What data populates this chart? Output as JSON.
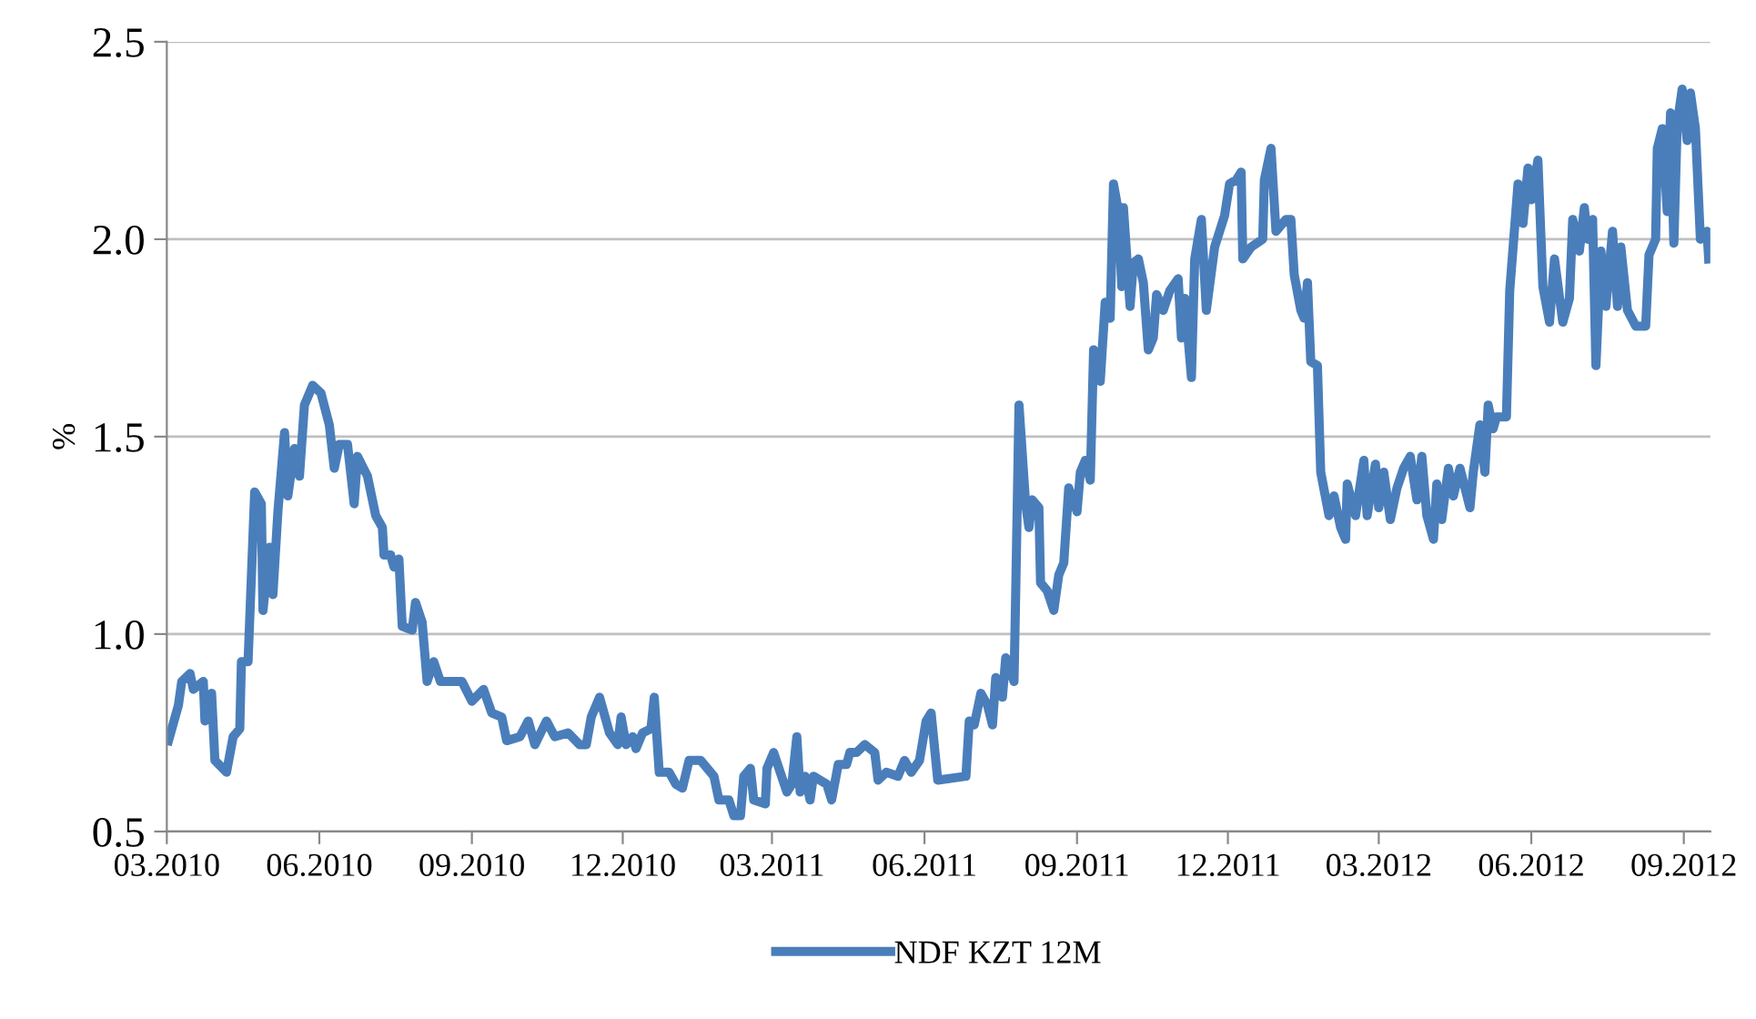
{
  "chart_data": {
    "type": "line",
    "ylabel": "%",
    "legend": "bottom",
    "grid": "y",
    "marker": "none",
    "line_style": "solid",
    "xlim": [
      "2010-03-01",
      "2012-09-17"
    ],
    "ylim": [
      0.5,
      2.5
    ],
    "xticks": [
      {
        "value": "2010-03-01",
        "label": "03.2010"
      },
      {
        "value": "2010-06-01",
        "label": "06.2010"
      },
      {
        "value": "2010-09-01",
        "label": "09.2010"
      },
      {
        "value": "2010-12-01",
        "label": "12.2010"
      },
      {
        "value": "2011-03-01",
        "label": "03.2011"
      },
      {
        "value": "2011-06-01",
        "label": "06.2011"
      },
      {
        "value": "2011-09-01",
        "label": "09.2011"
      },
      {
        "value": "2011-12-01",
        "label": "12.2011"
      },
      {
        "value": "2012-03-01",
        "label": "03.2012"
      },
      {
        "value": "2012-06-01",
        "label": "06.2012"
      },
      {
        "value": "2012-09-01",
        "label": "09.2012"
      }
    ],
    "yticks": [
      {
        "value": 0.5,
        "label": "0.5"
      },
      {
        "value": 1.0,
        "label": "1.0"
      },
      {
        "value": 1.5,
        "label": "1.5"
      },
      {
        "value": 2.0,
        "label": "2.0"
      },
      {
        "value": 2.5,
        "label": "2.5"
      }
    ],
    "series": [
      {
        "name": "NDF KZT 12M",
        "color": "#4a7ebb",
        "x": [
          "2010-03-02",
          "2010-03-08",
          "2010-03-10",
          "2010-03-15",
          "2010-03-17",
          "2010-03-23",
          "2010-03-24",
          "2010-03-28",
          "2010-03-30",
          "2010-04-06",
          "2010-04-10",
          "2010-04-14",
          "2010-04-15",
          "2010-04-19",
          "2010-04-23",
          "2010-04-27",
          "2010-04-28",
          "2010-05-02",
          "2010-05-04",
          "2010-05-07",
          "2010-05-11",
          "2010-05-13",
          "2010-05-17",
          "2010-05-20",
          "2010-05-23",
          "2010-05-28",
          "2010-06-02",
          "2010-06-07",
          "2010-06-10",
          "2010-06-13",
          "2010-06-18",
          "2010-06-22",
          "2010-06-24",
          "2010-06-30",
          "2010-07-05",
          "2010-07-09",
          "2010-07-10",
          "2010-07-14",
          "2010-07-16",
          "2010-07-19",
          "2010-07-21",
          "2010-07-27",
          "2010-07-29",
          "2010-08-02",
          "2010-08-05",
          "2010-08-09",
          "2010-08-13",
          "2010-08-20",
          "2010-08-26",
          "2010-09-01",
          "2010-09-08",
          "2010-09-13",
          "2010-09-19",
          "2010-09-22",
          "2010-09-30",
          "2010-10-05",
          "2010-10-09",
          "2010-10-16",
          "2010-10-21",
          "2010-10-29",
          "2010-11-05",
          "2010-11-09",
          "2010-11-12",
          "2010-11-17",
          "2010-11-23",
          "2010-11-28",
          "2010-11-30",
          "2010-12-03",
          "2010-12-07",
          "2010-12-09",
          "2010-12-13",
          "2010-12-18",
          "2010-12-20",
          "2010-12-23",
          "2010-12-29",
          "2011-01-02",
          "2011-01-06",
          "2011-01-10",
          "2011-01-12",
          "2011-01-17",
          "2011-01-25",
          "2011-01-28",
          "2011-02-03",
          "2011-02-06",
          "2011-02-10",
          "2011-02-12",
          "2011-02-16",
          "2011-02-18",
          "2011-02-25",
          "2011-02-26",
          "2011-03-02",
          "2011-03-06",
          "2011-03-10",
          "2011-03-13",
          "2011-03-16",
          "2011-03-18",
          "2011-03-21",
          "2011-03-24",
          "2011-03-26",
          "2011-04-03",
          "2011-04-06",
          "2011-04-10",
          "2011-04-15",
          "2011-04-17",
          "2011-04-21",
          "2011-04-26",
          "2011-05-02",
          "2011-05-04",
          "2011-05-09",
          "2011-05-16",
          "2011-05-20",
          "2011-05-24",
          "2011-05-29",
          "2011-06-02",
          "2011-06-05",
          "2011-06-09",
          "2011-06-26",
          "2011-06-28",
          "2011-07-01",
          "2011-07-05",
          "2011-07-09",
          "2011-07-12",
          "2011-07-14",
          "2011-07-18",
          "2011-07-20",
          "2011-07-25",
          "2011-07-26",
          "2011-07-28",
          "2011-08-01",
          "2011-08-03",
          "2011-08-05",
          "2011-08-09",
          "2011-08-10",
          "2011-08-14",
          "2011-08-18",
          "2011-08-21",
          "2011-08-24",
          "2011-08-27",
          "2011-09-01",
          "2011-09-03",
          "2011-09-06",
          "2011-09-09",
          "2011-09-11",
          "2011-09-15",
          "2011-09-18",
          "2011-09-21",
          "2011-09-23",
          "2011-09-26",
          "2011-09-28",
          "2011-09-29",
          "2011-10-03",
          "2011-10-05",
          "2011-10-08",
          "2011-10-11",
          "2011-10-14",
          "2011-10-17",
          "2011-10-19",
          "2011-10-23",
          "2011-10-27",
          "2011-11-01",
          "2011-11-03",
          "2011-11-05",
          "2011-11-09",
          "2011-11-11",
          "2011-11-15",
          "2011-11-18",
          "2011-11-23",
          "2011-11-26",
          "2011-11-29",
          "2011-12-02",
          "2011-12-06",
          "2011-12-09",
          "2011-12-10",
          "2011-12-15",
          "2011-12-22",
          "2011-12-23",
          "2011-12-27",
          "2011-12-30",
          "2012-01-05",
          "2012-01-08",
          "2012-01-10",
          "2012-01-14",
          "2012-01-16",
          "2012-01-18",
          "2012-01-20",
          "2012-01-24",
          "2012-01-26",
          "2012-01-31",
          "2012-02-03",
          "2012-02-07",
          "2012-02-10",
          "2012-02-11",
          "2012-02-16",
          "2012-02-21",
          "2012-02-23",
          "2012-02-28",
          "2012-03-01",
          "2012-03-04",
          "2012-03-08",
          "2012-03-12",
          "2012-03-16",
          "2012-03-20",
          "2012-03-24",
          "2012-03-27",
          "2012-03-30",
          "2012-04-03",
          "2012-04-05",
          "2012-04-08",
          "2012-04-12",
          "2012-04-15",
          "2012-04-19",
          "2012-04-25",
          "2012-04-27",
          "2012-05-01",
          "2012-05-04",
          "2012-05-06",
          "2012-05-09",
          "2012-05-11",
          "2012-05-17",
          "2012-05-19",
          "2012-05-24",
          "2012-05-27",
          "2012-05-30",
          "2012-06-01",
          "2012-06-03",
          "2012-06-05",
          "2012-06-08",
          "2012-06-12",
          "2012-06-15",
          "2012-06-20",
          "2012-06-24",
          "2012-06-26",
          "2012-06-30",
          "2012-07-03",
          "2012-07-05",
          "2012-07-08",
          "2012-07-10",
          "2012-07-13",
          "2012-07-16",
          "2012-07-20",
          "2012-07-23",
          "2012-07-25",
          "2012-07-29",
          "2012-08-03",
          "2012-08-09",
          "2012-08-11",
          "2012-08-15",
          "2012-08-16",
          "2012-08-19",
          "2012-08-22",
          "2012-08-24",
          "2012-08-26",
          "2012-08-28",
          "2012-08-31",
          "2012-09-03",
          "2012-09-05",
          "2012-09-08",
          "2012-09-11",
          "2012-09-15",
          "2012-09-16"
        ],
        "values": [
          0.73,
          0.82,
          0.88,
          0.9,
          0.86,
          0.88,
          0.78,
          0.85,
          0.68,
          0.65,
          0.74,
          0.76,
          0.93,
          0.93,
          1.36,
          1.33,
          1.06,
          1.22,
          1.1,
          1.31,
          1.51,
          1.35,
          1.47,
          1.4,
          1.58,
          1.63,
          1.61,
          1.53,
          1.42,
          1.48,
          1.48,
          1.33,
          1.45,
          1.4,
          1.3,
          1.27,
          1.2,
          1.2,
          1.17,
          1.19,
          1.02,
          1.01,
          1.08,
          1.03,
          0.88,
          0.93,
          0.88,
          0.88,
          0.88,
          0.83,
          0.86,
          0.8,
          0.79,
          0.73,
          0.74,
          0.78,
          0.72,
          0.78,
          0.74,
          0.75,
          0.72,
          0.72,
          0.79,
          0.84,
          0.75,
          0.72,
          0.79,
          0.72,
          0.74,
          0.71,
          0.75,
          0.76,
          0.84,
          0.65,
          0.65,
          0.62,
          0.61,
          0.68,
          0.68,
          0.68,
          0.64,
          0.58,
          0.58,
          0.54,
          0.54,
          0.64,
          0.66,
          0.58,
          0.57,
          0.66,
          0.7,
          0.65,
          0.6,
          0.62,
          0.74,
          0.6,
          0.64,
          0.58,
          0.64,
          0.62,
          0.58,
          0.67,
          0.67,
          0.7,
          0.7,
          0.72,
          0.7,
          0.63,
          0.65,
          0.64,
          0.68,
          0.65,
          0.68,
          0.78,
          0.8,
          0.63,
          0.64,
          0.78,
          0.77,
          0.85,
          0.82,
          0.77,
          0.89,
          0.84,
          0.94,
          0.88,
          1.1,
          1.58,
          1.33,
          1.27,
          1.34,
          1.32,
          1.13,
          1.11,
          1.06,
          1.15,
          1.18,
          1.37,
          1.31,
          1.41,
          1.44,
          1.39,
          1.72,
          1.64,
          1.84,
          1.8,
          2.14,
          2.07,
          1.88,
          2.08,
          1.83,
          1.94,
          1.95,
          1.89,
          1.72,
          1.75,
          1.86,
          1.82,
          1.87,
          1.9,
          1.75,
          1.85,
          1.65,
          1.95,
          2.05,
          1.82,
          1.98,
          2.02,
          2.06,
          2.14,
          2.15,
          2.17,
          1.95,
          1.98,
          2.0,
          2.15,
          2.23,
          2.02,
          2.05,
          2.05,
          1.91,
          1.82,
          1.8,
          1.89,
          1.69,
          1.68,
          1.41,
          1.3,
          1.35,
          1.27,
          1.24,
          1.38,
          1.3,
          1.44,
          1.3,
          1.43,
          1.32,
          1.41,
          1.29,
          1.37,
          1.42,
          1.45,
          1.34,
          1.45,
          1.3,
          1.24,
          1.38,
          1.29,
          1.42,
          1.35,
          1.42,
          1.32,
          1.41,
          1.53,
          1.41,
          1.58,
          1.52,
          1.55,
          1.55,
          1.87,
          2.14,
          2.04,
          2.18,
          2.1,
          2.15,
          2.2,
          1.88,
          1.79,
          1.95,
          1.79,
          1.85,
          2.05,
          1.97,
          2.08,
          2.0,
          2.05,
          1.68,
          1.97,
          1.83,
          2.02,
          1.83,
          1.98,
          1.82,
          1.78,
          1.78,
          1.96,
          2.0,
          2.23,
          2.28,
          2.07,
          2.32,
          1.99,
          2.29,
          2.38,
          2.25,
          2.37,
          2.28,
          2.0,
          2.02,
          1.95
        ]
      }
    ]
  }
}
